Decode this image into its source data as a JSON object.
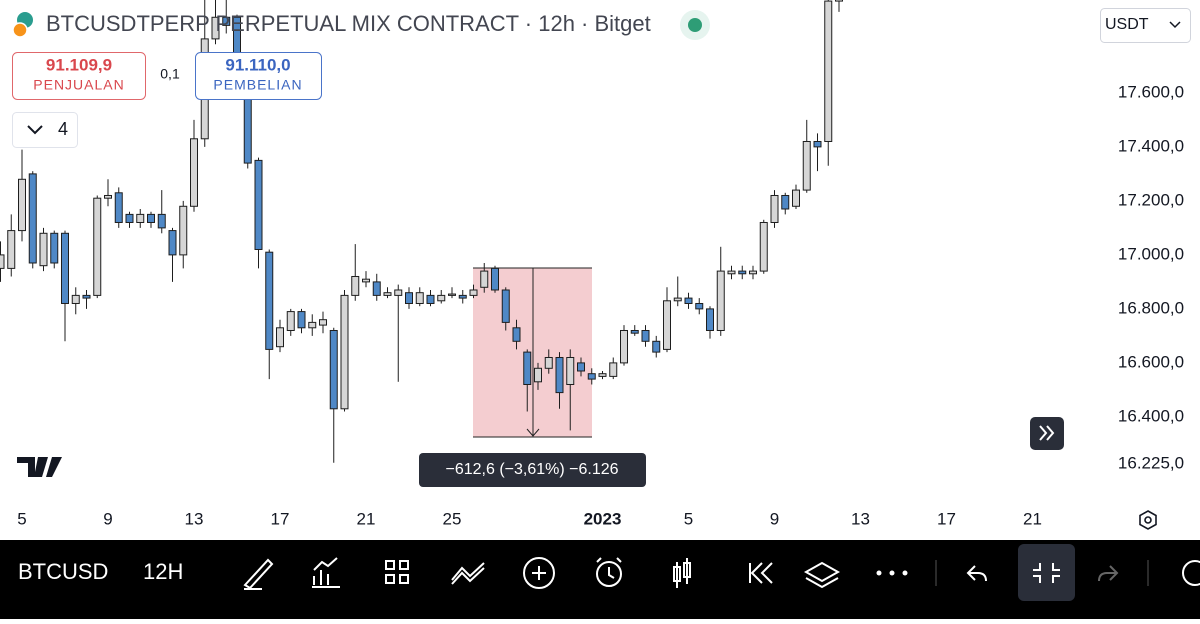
{
  "header": {
    "title": "BTCUSDTPERP PERPETUAL MIX CONTRACT · 12h · Bitget",
    "quote_currency": "USDT"
  },
  "order": {
    "sell_price": "91.109,9",
    "sell_label": "PENJUALAN",
    "spread": "0,1",
    "buy_price": "91.110,0",
    "buy_label": "PEMBELIAN",
    "indicator_count": "4"
  },
  "chart_data": {
    "type": "candlestick",
    "up_color": "#d6d6d6",
    "down_color": "#4f88c6",
    "outline_color": "#1e1e1e",
    "categories": [
      null,
      null,
      "5",
      null,
      null,
      null,
      null,
      null,
      null,
      null,
      "9",
      null,
      null,
      null,
      null,
      null,
      null,
      null,
      "13",
      null,
      null,
      null,
      null,
      null,
      null,
      null,
      "17",
      null,
      null,
      null,
      null,
      null,
      null,
      null,
      "21",
      null,
      null,
      null,
      null,
      null,
      null,
      null,
      "25",
      null,
      null,
      null,
      null,
      null,
      null,
      null,
      null,
      null,
      null,
      null,
      null,
      null,
      "2023",
      null,
      null,
      null,
      null,
      null,
      null,
      null,
      "5",
      null,
      null,
      null,
      null,
      null,
      null,
      null,
      "9",
      null,
      null,
      null,
      null,
      null,
      null,
      null,
      "13",
      null,
      null,
      null,
      null,
      null,
      null,
      null,
      "17",
      null,
      null,
      null,
      null,
      null,
      null,
      null,
      "21"
    ],
    "open": [
      16950,
      16950,
      17090,
      17300,
      16960,
      17080,
      17080,
      16820,
      16850,
      16850,
      17210,
      17230,
      17150,
      17120,
      17150,
      17150,
      17090,
      17000,
      17180,
      17430,
      17800,
      17880,
      17880,
      17600,
      17350,
      17010,
      16660,
      16720,
      16790,
      16730,
      16740,
      16720,
      16430,
      16850,
      16900,
      16900,
      16850,
      16850,
      16860,
      16820,
      16850,
      16830,
      16850,
      16850,
      16850,
      16880,
      16950,
      16870,
      16730,
      16640,
      16530,
      16580,
      16620,
      16520,
      16600,
      16560,
      16550,
      16550,
      16600,
      16720,
      16720,
      16680,
      16650,
      16830,
      16840,
      16820,
      16800,
      16720,
      16930,
      16940,
      16930,
      16940,
      17120,
      17220,
      17180,
      17240,
      17420,
      17420,
      17940,
      null,
      null,
      null,
      null,
      null,
      null,
      null,
      null,
      null,
      null,
      null,
      null,
      null,
      null,
      null,
      null,
      null,
      null
    ],
    "high": [
      17050,
      17150,
      17390,
      17310,
      17100,
      17090,
      17090,
      16880,
      16870,
      17220,
      17280,
      17250,
      17160,
      17170,
      17160,
      17240,
      17100,
      17200,
      17500,
      17950,
      17944,
      17944,
      17890,
      17620,
      17360,
      17020,
      16760,
      16800,
      16800,
      16780,
      16790,
      16730,
      16870,
      17040,
      16940,
      16930,
      16880,
      16890,
      16880,
      16880,
      16870,
      16870,
      16880,
      16870,
      16890,
      16970,
      16960,
      16880,
      16760,
      16650,
      16600,
      16650,
      16640,
      16650,
      16620,
      16580,
      16570,
      16620,
      16740,
      16740,
      16740,
      16700,
      16880,
      16920,
      16860,
      16840,
      16810,
      17030,
      16960,
      16960,
      16960,
      17130,
      17240,
      17230,
      17260,
      17500,
      17450,
      17980,
      18000,
      null,
      null,
      null,
      null,
      null,
      null,
      null,
      null,
      null,
      null,
      null,
      null,
      null,
      null,
      null,
      null,
      null,
      null
    ],
    "low": [
      16900,
      16920,
      17050,
      16950,
      16940,
      16950,
      16680,
      16780,
      16800,
      16840,
      17180,
      17100,
      17100,
      17100,
      17100,
      17080,
      16900,
      16950,
      17160,
      17400,
      17780,
      17820,
      17580,
      17320,
      16950,
      16540,
      16640,
      16700,
      16710,
      16700,
      16710,
      16230,
      16420,
      16830,
      16880,
      16830,
      16840,
      16530,
      16800,
      16810,
      16810,
      16820,
      16840,
      16820,
      16840,
      16860,
      16860,
      16720,
      16650,
      16420,
      16500,
      16560,
      16430,
      16350,
      16550,
      16520,
      16540,
      16540,
      16590,
      16700,
      16660,
      16620,
      16640,
      16810,
      16800,
      16780,
      16690,
      16700,
      16910,
      16910,
      16910,
      16930,
      17100,
      17150,
      17170,
      17230,
      17310,
      17330,
      17900,
      null,
      null,
      null,
      null,
      null,
      null,
      null,
      null,
      null,
      null,
      null,
      null,
      null,
      null,
      null,
      null,
      null,
      null
    ],
    "close": [
      17000,
      17090,
      17280,
      16970,
      17080,
      16970,
      16820,
      16850,
      16840,
      17210,
      17220,
      17120,
      17120,
      17150,
      17120,
      17100,
      17000,
      17180,
      17430,
      17800,
      17880,
      17850,
      17600,
      17340,
      17020,
      16650,
      16730,
      16790,
      16730,
      16750,
      16760,
      16430,
      16850,
      16920,
      16910,
      16850,
      16860,
      16870,
      16820,
      16860,
      16820,
      16850,
      16855,
      16840,
      16870,
      16940,
      16870,
      16750,
      16680,
      16520,
      16580,
      16620,
      16490,
      16620,
      16570,
      16540,
      16560,
      16600,
      16720,
      16710,
      16680,
      16640,
      16830,
      16840,
      16820,
      16800,
      16720,
      16940,
      16940,
      16930,
      16940,
      17120,
      17220,
      17170,
      17240,
      17420,
      17400,
      17940,
      17960,
      null,
      null,
      null,
      null,
      null,
      null,
      null,
      null,
      null,
      null,
      null,
      null,
      null,
      null,
      null,
      null,
      null,
      null
    ],
    "ylim": [
      16070,
      17944
    ],
    "yticks": [
      {
        "value": 16225,
        "label": "16.225,0"
      },
      {
        "value": 16400,
        "label": "16.400,0"
      },
      {
        "value": 16600,
        "label": "16.600,0"
      },
      {
        "value": 16800,
        "label": "16.800,0"
      },
      {
        "value": 17000,
        "label": "17.000,0"
      },
      {
        "value": 17200,
        "label": "17.200,0"
      },
      {
        "value": 17400,
        "label": "17.400,0"
      },
      {
        "value": 17600,
        "label": "17.600,0"
      }
    ],
    "grid": false,
    "annotation": "−612,6 (−3,61%) −6.126"
  },
  "toolbar": {
    "symbol": "BTCUSD",
    "interval": "12H"
  }
}
